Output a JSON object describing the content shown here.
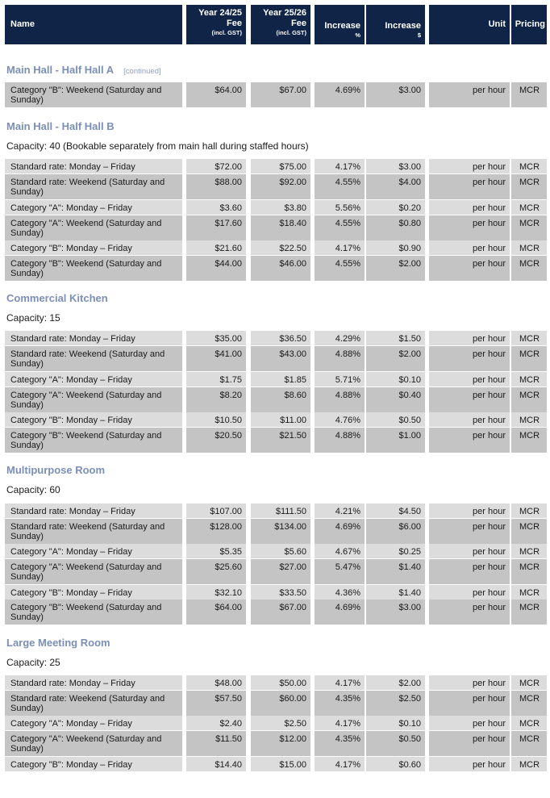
{
  "header": {
    "name": "Name",
    "year1_line1": "Year 24/25",
    "year1_line2": "Fee",
    "year1_line3": "(incl. GST)",
    "year2_line1": "Year 25/26",
    "year2_line2": "Fee",
    "year2_line3": "(incl. GST)",
    "inc_pct_line1": "Increase",
    "inc_pct_line2": "%",
    "inc_dollar_line1": "Increase",
    "inc_dollar_line2": "$",
    "unit": "Unit",
    "pricing": "Pricing"
  },
  "sections": [
    {
      "title": "Main Hall - Half Hall A",
      "continued": "[continued]",
      "capacity": "",
      "rows": [
        {
          "name": "Category \"B\": Weekend (Saturday and Sunday)",
          "y1": "$64.00",
          "y2": "$67.00",
          "pct": "4.69%",
          "inc": "$3.00",
          "unit": "per hour",
          "pricing": "MCR"
        }
      ]
    },
    {
      "title": "Main Hall - Half Hall B",
      "continued": "",
      "capacity": "Capacity: 40 (Bookable separately from main hall during staffed hours)",
      "rows": [
        {
          "name": "Standard rate: Monday – Friday",
          "y1": "$72.00",
          "y2": "$75.00",
          "pct": "4.17%",
          "inc": "$3.00",
          "unit": "per hour",
          "pricing": "MCR"
        },
        {
          "name": "Standard rate: Weekend (Saturday and Sunday)",
          "y1": "$88.00",
          "y2": "$92.00",
          "pct": "4.55%",
          "inc": "$4.00",
          "unit": "per hour",
          "pricing": "MCR"
        },
        {
          "name": "Category \"A\": Monday – Friday",
          "y1": "$3.60",
          "y2": "$3.80",
          "pct": "5.56%",
          "inc": "$0.20",
          "unit": "per hour",
          "pricing": "MCR"
        },
        {
          "name": "Category \"A\": Weekend (Saturday and Sunday)",
          "y1": "$17.60",
          "y2": "$18.40",
          "pct": "4.55%",
          "inc": "$0.80",
          "unit": "per hour",
          "pricing": "MCR"
        },
        {
          "name": "Category \"B\": Monday – Friday",
          "y1": "$21.60",
          "y2": "$22.50",
          "pct": "4.17%",
          "inc": "$0.90",
          "unit": "per hour",
          "pricing": "MCR"
        },
        {
          "name": "Category \"B\": Weekend (Saturday and Sunday)",
          "y1": "$44.00",
          "y2": "$46.00",
          "pct": "4.55%",
          "inc": "$2.00",
          "unit": "per hour",
          "pricing": "MCR"
        }
      ]
    },
    {
      "title": "Commercial Kitchen",
      "continued": "",
      "capacity": "Capacity: 15",
      "rows": [
        {
          "name": "Standard rate: Monday – Friday",
          "y1": "$35.00",
          "y2": "$36.50",
          "pct": "4.29%",
          "inc": "$1.50",
          "unit": "per hour",
          "pricing": "MCR"
        },
        {
          "name": "Standard rate: Weekend (Saturday and Sunday)",
          "y1": "$41.00",
          "y2": "$43.00",
          "pct": "4.88%",
          "inc": "$2.00",
          "unit": "per hour",
          "pricing": "MCR"
        },
        {
          "name": "Category \"A\": Monday – Friday",
          "y1": "$1.75",
          "y2": "$1.85",
          "pct": "5.71%",
          "inc": "$0.10",
          "unit": "per hour",
          "pricing": "MCR"
        },
        {
          "name": "Category \"A\": Weekend (Saturday and Sunday)",
          "y1": "$8.20",
          "y2": "$8.60",
          "pct": "4.88%",
          "inc": "$0.40",
          "unit": "per hour",
          "pricing": "MCR"
        },
        {
          "name": "Category \"B\": Monday – Friday",
          "y1": "$10.50",
          "y2": "$11.00",
          "pct": "4.76%",
          "inc": "$0.50",
          "unit": "per hour",
          "pricing": "MCR"
        },
        {
          "name": "Category \"B\": Weekend (Saturday and Sunday)",
          "y1": "$20.50",
          "y2": "$21.50",
          "pct": "4.88%",
          "inc": "$1.00",
          "unit": "per hour",
          "pricing": "MCR"
        }
      ]
    },
    {
      "title": "Multipurpose Room",
      "continued": "",
      "capacity": "Capacity: 60",
      "rows": [
        {
          "name": "Standard rate: Monday – Friday",
          "y1": "$107.00",
          "y2": "$111.50",
          "pct": "4.21%",
          "inc": "$4.50",
          "unit": "per hour",
          "pricing": "MCR"
        },
        {
          "name": "Standard rate: Weekend (Saturday and Sunday)",
          "y1": "$128.00",
          "y2": "$134.00",
          "pct": "4.69%",
          "inc": "$6.00",
          "unit": "per hour",
          "pricing": "MCR"
        },
        {
          "name": "Category \"A\": Monday – Friday",
          "y1": "$5.35",
          "y2": "$5.60",
          "pct": "4.67%",
          "inc": "$0.25",
          "unit": "per hour",
          "pricing": "MCR"
        },
        {
          "name": "Category \"A\": Weekend (Saturday and Sunday)",
          "y1": "$25.60",
          "y2": "$27.00",
          "pct": "5.47%",
          "inc": "$1.40",
          "unit": "per hour",
          "pricing": "MCR"
        },
        {
          "name": "Category \"B\": Monday – Friday",
          "y1": "$32.10",
          "y2": "$33.50",
          "pct": "4.36%",
          "inc": "$1.40",
          "unit": "per hour",
          "pricing": "MCR"
        },
        {
          "name": "Category \"B\": Weekend (Saturday and Sunday)",
          "y1": "$64.00",
          "y2": "$67.00",
          "pct": "4.69%",
          "inc": "$3.00",
          "unit": "per hour",
          "pricing": "MCR"
        }
      ]
    },
    {
      "title": "Large Meeting Room",
      "continued": "",
      "capacity": "Capacity: 25",
      "rows": [
        {
          "name": "Standard rate: Monday – Friday",
          "y1": "$48.00",
          "y2": "$50.00",
          "pct": "4.17%",
          "inc": "$2.00",
          "unit": "per hour",
          "pricing": "MCR"
        },
        {
          "name": "Standard rate: Weekend (Saturday and Sunday)",
          "y1": "$57.50",
          "y2": "$60.00",
          "pct": "4.35%",
          "inc": "$2.50",
          "unit": "per hour",
          "pricing": "MCR"
        },
        {
          "name": "Category \"A\": Monday – Friday",
          "y1": "$2.40",
          "y2": "$2.50",
          "pct": "4.17%",
          "inc": "$0.10",
          "unit": "per hour",
          "pricing": "MCR"
        },
        {
          "name": "Category \"A\": Weekend (Saturday and Sunday)",
          "y1": "$11.50",
          "y2": "$12.00",
          "pct": "4.35%",
          "inc": "$0.50",
          "unit": "per hour",
          "pricing": "MCR"
        },
        {
          "name": "Category \"B\": Monday – Friday",
          "y1": "$14.40",
          "y2": "$15.00",
          "pct": "4.17%",
          "inc": "$0.60",
          "unit": "per hour",
          "pricing": "MCR"
        }
      ]
    }
  ]
}
